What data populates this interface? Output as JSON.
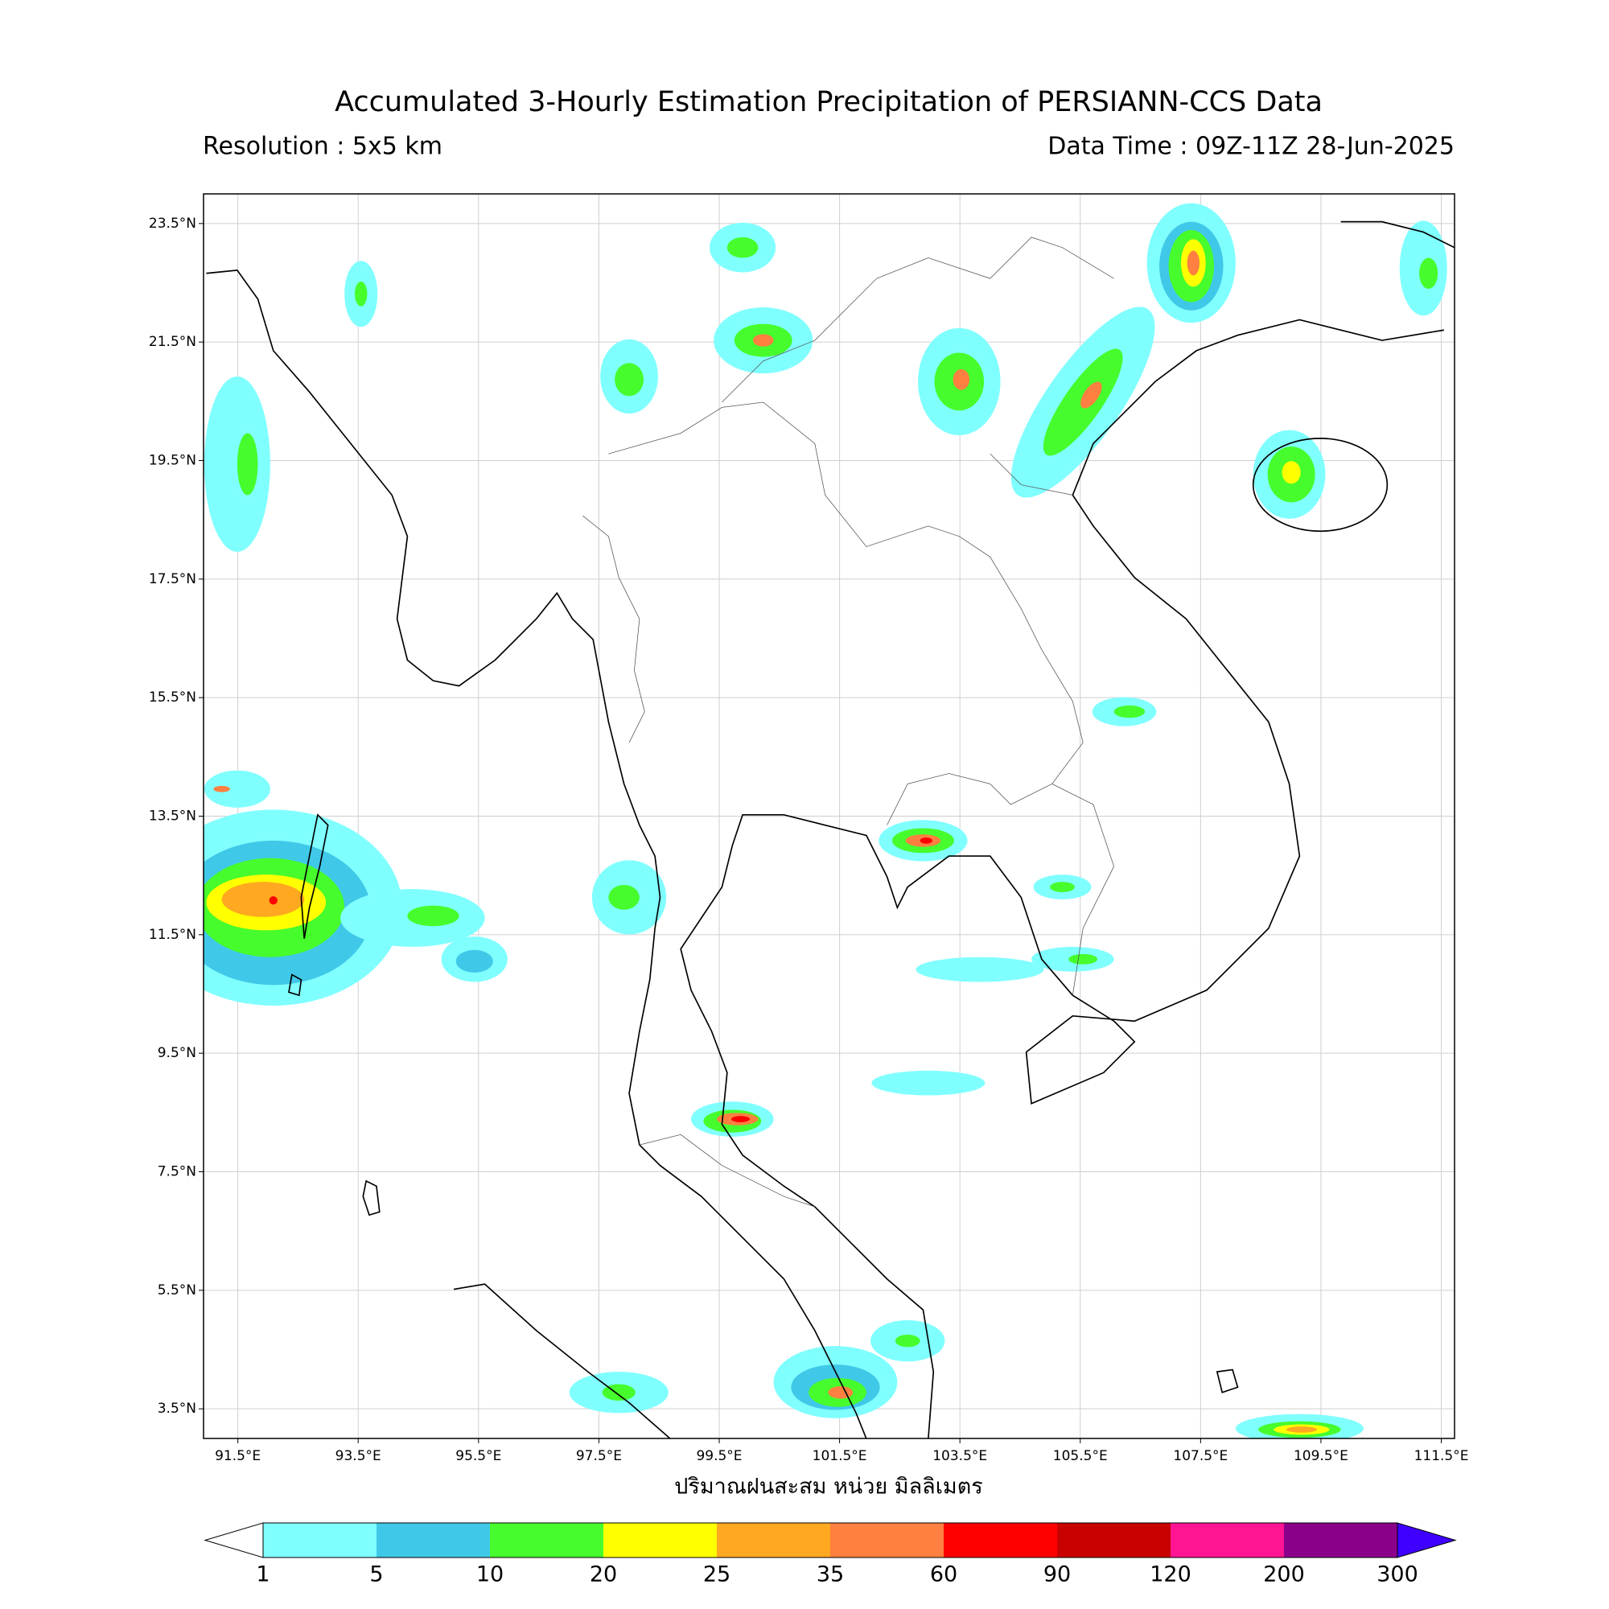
{
  "header": {
    "title": "Accumulated 3-Hourly Estimation Precipitation of PERSIANN-CCS Data",
    "resolution": "Resolution : 5x5 km",
    "data_time": "Data Time : 09Z-11Z 28-Jun-2025"
  },
  "map": {
    "lonlim": [
      90.93,
      111.72
    ],
    "latlim": [
      3.0,
      24.0
    ],
    "lon_ticks": [
      {
        "value": 91.5,
        "label": "91.5°E"
      },
      {
        "value": 93.5,
        "label": "93.5°E"
      },
      {
        "value": 95.5,
        "label": "95.5°E"
      },
      {
        "value": 97.5,
        "label": "97.5°E"
      },
      {
        "value": 99.5,
        "label": "99.5°E"
      },
      {
        "value": 101.5,
        "label": "101.5°E"
      },
      {
        "value": 103.5,
        "label": "103.5°E"
      },
      {
        "value": 105.5,
        "label": "105.5°E"
      },
      {
        "value": 107.5,
        "label": "107.5°E"
      },
      {
        "value": 109.5,
        "label": "109.5°E"
      },
      {
        "value": 111.5,
        "label": "111.5°E"
      }
    ],
    "lat_ticks": [
      {
        "value": 3.5,
        "label": "3.5°N"
      },
      {
        "value": 5.5,
        "label": "5.5°N"
      },
      {
        "value": 7.5,
        "label": "7.5°N"
      },
      {
        "value": 9.5,
        "label": "9.5°N"
      },
      {
        "value": 11.5,
        "label": "11.5°N"
      },
      {
        "value": 13.5,
        "label": "13.5°N"
      },
      {
        "value": 15.5,
        "label": "15.5°N"
      },
      {
        "value": 17.5,
        "label": "17.5°N"
      },
      {
        "value": 19.5,
        "label": "19.5°N"
      },
      {
        "value": 21.5,
        "label": "21.5°N"
      },
      {
        "value": 23.5,
        "label": "23.5°N"
      }
    ],
    "grid": true,
    "xlabel": "ปริมาณฝนสะสม หน่วย มิลลิเมตร"
  },
  "colorbar": {
    "levels": [
      1,
      5,
      10,
      20,
      25,
      35,
      60,
      90,
      120,
      200,
      300
    ],
    "colors": [
      "#80ffff",
      "#40c8e8",
      "#46fc2c",
      "#ffff00",
      "#ffa820",
      "#ff8040",
      "#ff0000",
      "#c80000",
      "#ff1493",
      "#8b008b"
    ],
    "under_color": "#ffffff",
    "over_color": "#3f00ff"
  }
}
